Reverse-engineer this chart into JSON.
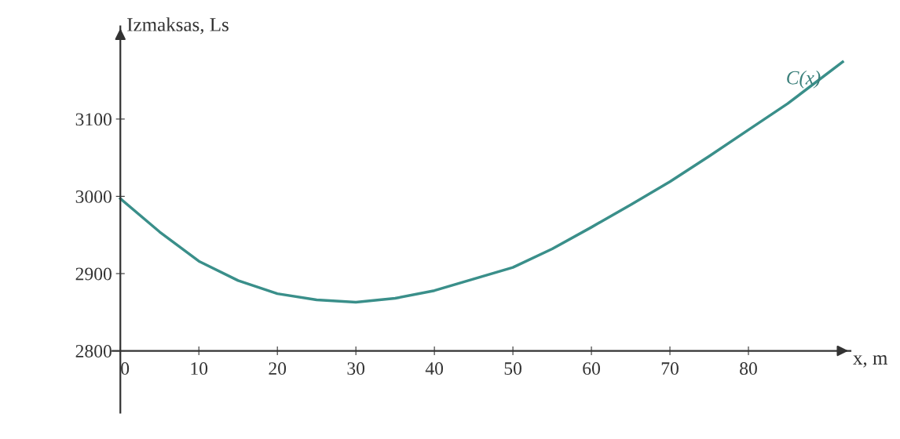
{
  "chart_data": {
    "type": "line",
    "xlabel": "x, m",
    "ylabel": "Izmaksas, Ls",
    "x": [
      0,
      5,
      10,
      15,
      20,
      25,
      30,
      35,
      40,
      45,
      50,
      55,
      60,
      65,
      70,
      75,
      80,
      85,
      92
    ],
    "series": [
      {
        "color": "#3a8f8a",
        "values": [
          2997,
          2954,
          2916,
          2891,
          2874,
          2866,
          2863,
          2868,
          2878,
          2893,
          2908,
          2932,
          2960,
          2989,
          3019,
          3052,
          3086,
          3120,
          3174
        ]
      }
    ],
    "annotations": [
      "C(x)"
    ],
    "xlim": [
      -1,
      93
    ],
    "ylim": [
      2720,
      3220
    ],
    "xticks": [
      0,
      10,
      20,
      30,
      40,
      50,
      60,
      70,
      80
    ],
    "yticks": [
      2800,
      2900,
      3000,
      3100
    ],
    "grid": false,
    "legend": false,
    "marker": "none",
    "line_style": "solid"
  }
}
